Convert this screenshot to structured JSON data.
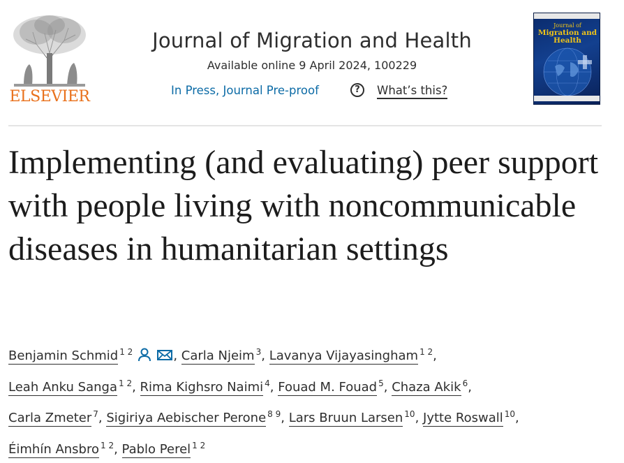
{
  "publisher": {
    "name": "ELSEVIER"
  },
  "journal": {
    "title": "Journal of Migration and Health",
    "availability": "Available online 9 April 2024, 100229",
    "status": "In Press, Journal Pre-proof",
    "help_label": "What’s this?",
    "help_icon": "question-circle-icon",
    "cover_title_line1": "Journal of",
    "cover_title_line2": "Migration and",
    "cover_title_line3": "Health"
  },
  "article": {
    "title": "Implementing (and evaluating) peer support with people living with noncommunicable diseases in humanitarian settings"
  },
  "authors": [
    {
      "name": "Benjamin Schmid",
      "affiliations": "1 2",
      "icons": [
        "person-icon",
        "envelope-icon"
      ]
    },
    {
      "name": "Carla Njeim",
      "affiliations": "3"
    },
    {
      "name": "Lavanya Vijayasingham",
      "affiliations": "1 2"
    },
    {
      "name": "Leah Anku Sanga",
      "affiliations": "1 2"
    },
    {
      "name": "Rima Kighsro Naimi",
      "affiliations": "4"
    },
    {
      "name": "Fouad M. Fouad",
      "affiliations": "5"
    },
    {
      "name": "Chaza Akik",
      "affiliations": "6"
    },
    {
      "name": "Carla Zmeter",
      "affiliations": "7"
    },
    {
      "name": "Sigiriya Aebischer Perone",
      "affiliations": "8 9"
    },
    {
      "name": "Lars Bruun Larsen",
      "affiliations": "10"
    },
    {
      "name": "Jytte Roswall",
      "affiliations": "10"
    },
    {
      "name": "Éimhín Ansbro",
      "affiliations": "1 2"
    },
    {
      "name": "Pablo Perel",
      "affiliations": "1 2"
    }
  ],
  "colors": {
    "publisher": "#e9711c",
    "link": "#0c6ba6",
    "text": "#2e2e2e",
    "cover_bg": "#13408f",
    "cover_title": "#f0c419"
  }
}
